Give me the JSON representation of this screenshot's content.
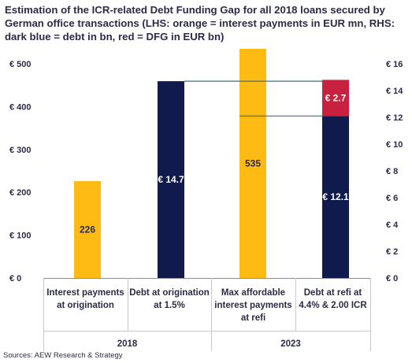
{
  "title_lines": [
    "Estimation of the ICR-related Debt Funding Gap for all 2018 loans secured by",
    "German office transactions (LHS: orange = interest payments in EUR mn, RHS:",
    "dark blue = debt in bn, red = DFG in EUR bn)"
  ],
  "source": "Sources: AEW Research & Strategy",
  "colors": {
    "orange": "#FDBB13",
    "navy": "#111A4D",
    "red": "#C8213F",
    "connector": "#3A7088"
  },
  "chart_data": {
    "type": "bar",
    "left_axis": {
      "ylim": [
        0,
        500
      ],
      "ticks": [
        0,
        100,
        200,
        300,
        400,
        500
      ],
      "tick_labels": [
        "€ 0",
        "€ 100",
        "€ 200",
        "€ 300",
        "€ 400",
        "€ 500"
      ]
    },
    "right_axis": {
      "ylim": [
        0,
        16
      ],
      "ticks": [
        0,
        2,
        4,
        6,
        8,
        10,
        12,
        14,
        16
      ],
      "tick_labels": [
        "€ 0",
        "€ 2",
        "€ 4",
        "€ 6",
        "€ 8",
        "€ 10",
        "€ 12",
        "€ 14",
        "€ 16"
      ]
    },
    "categories": [
      [
        "Interest payments",
        "at origination"
      ],
      [
        "Debt at origination",
        "at 1.5%"
      ],
      [
        "Max affordable",
        "interest payments",
        "at refi"
      ],
      [
        "Debt at refi at",
        "4.4% & 2.00 ICR"
      ]
    ],
    "groups": [
      {
        "label": "2018",
        "categories": [
          0,
          1
        ]
      },
      {
        "label": "2023",
        "categories": [
          2,
          3
        ]
      }
    ],
    "bars": [
      {
        "category": 0,
        "axis": "left",
        "color": "orange",
        "segments": [
          {
            "value": 226,
            "label": "226"
          }
        ]
      },
      {
        "category": 1,
        "axis": "right",
        "color": "navy",
        "segments": [
          {
            "value": 14.7,
            "label": "€ 14.7"
          }
        ]
      },
      {
        "category": 2,
        "axis": "left",
        "color": "orange",
        "segments": [
          {
            "value": 535,
            "label": "535"
          }
        ]
      },
      {
        "category": 3,
        "axis": "right",
        "color": "navy",
        "segments": [
          {
            "value": 12.1,
            "label": "€ 12.1",
            "color": "navy"
          },
          {
            "value": 2.7,
            "label": "€ 2.7",
            "color": "red"
          }
        ]
      }
    ]
  }
}
